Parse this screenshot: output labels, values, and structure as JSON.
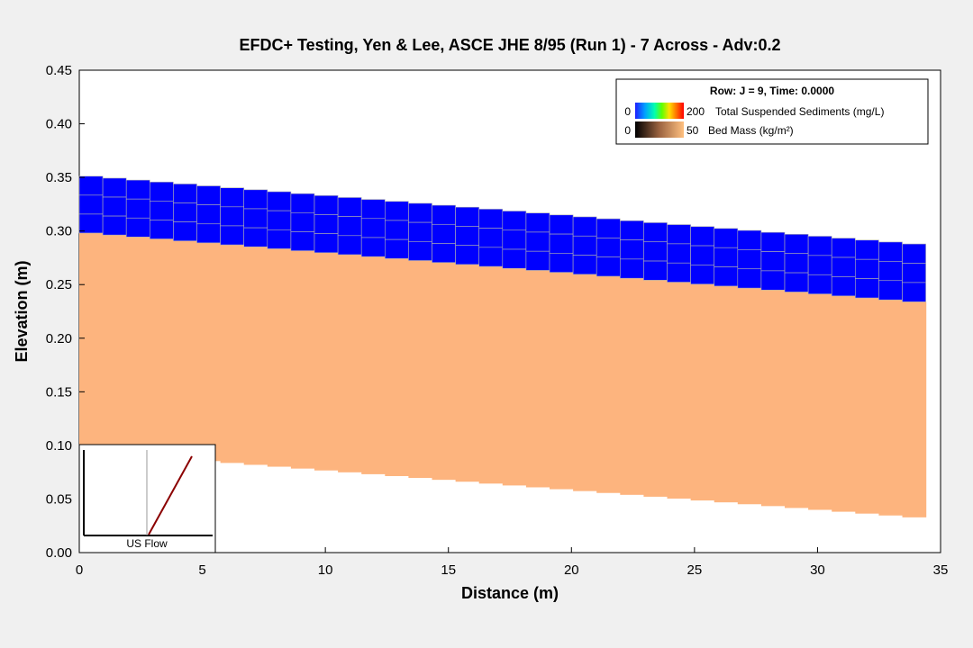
{
  "chart_data": {
    "type": "area",
    "title": "EFDC+ Testing, Yen & Lee, ASCE JHE 8/95 (Run 1) - 7 Across - Adv:0.2",
    "xlabel": "Distance (m)",
    "ylabel": "Elevation (m)",
    "xlim": [
      0,
      35
    ],
    "ylim": [
      0,
      0.45
    ],
    "x_ticks": [
      0,
      5,
      10,
      15,
      20,
      25,
      30,
      35
    ],
    "y_ticks": [
      0.0,
      0.05,
      0.1,
      0.15,
      0.2,
      0.25,
      0.3,
      0.35,
      0.4,
      0.45
    ],
    "grid": false,
    "legend_placement": "top-right",
    "water_column": {
      "x_range": [
        0,
        34.4
      ],
      "cells_along": 36,
      "layers": 3,
      "surface_elevation": [
        0.352,
        0.287
      ],
      "color": "#0000ff",
      "cell_border_color": "#b0b0b0"
    },
    "bed": {
      "top_elevation": [
        0.299,
        0.233
      ],
      "bottom_elevation": [
        0.095,
        0.032
      ],
      "color": "#fdb47e"
    },
    "legend": {
      "title": "Row: J = 9, Time: 0.0000",
      "entries": [
        {
          "min": "0",
          "max": "200",
          "label": "Total Suspended Sediments (mg/L)",
          "colormap": "rainbow"
        },
        {
          "min": "0",
          "max": "50",
          "label": "Bed Mass (kg/m²)",
          "colormap": "copper"
        }
      ]
    },
    "inset": {
      "label": "US Flow",
      "line_color": "#8b0000"
    }
  }
}
